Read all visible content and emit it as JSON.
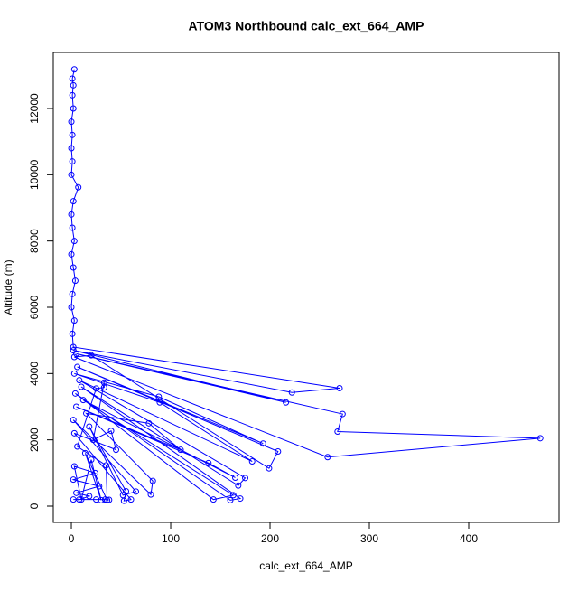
{
  "chart_data": {
    "type": "line",
    "title": "ATOM3 Northbound calc_ext_664_AMP",
    "x_label": "calc_ext_664_AMP",
    "y_label": "Altitude (m)",
    "xlim": [
      -18.2,
      490.9
    ],
    "ylim": [
      -491,
      13691
    ],
    "xticks": [
      0,
      100,
      200,
      300,
      400
    ],
    "yticks": [
      0,
      2000,
      4000,
      6000,
      8000,
      10000,
      12000
    ],
    "series": [
      {
        "color": "#0000ff",
        "x": [
          3,
          1,
          2,
          1,
          2,
          0,
          1,
          0,
          1,
          0,
          7,
          2,
          0,
          1,
          3,
          0,
          2,
          4,
          1,
          0,
          3,
          1,
          2,
          270,
          222,
          2,
          216,
          5,
          273,
          268,
          472,
          258,
          3,
          20,
          199,
          208,
          6,
          193,
          88,
          3,
          89,
          182,
          8,
          175,
          168,
          10,
          170,
          160,
          4,
          143,
          163,
          12,
          165,
          138,
          5,
          110,
          78,
          15,
          82,
          80,
          2,
          65,
          52,
          18,
          55,
          53,
          60,
          3,
          45,
          40,
          22,
          33,
          33,
          25,
          6,
          35,
          36,
          14,
          30,
          20,
          10,
          3,
          24,
          2,
          28,
          5,
          18,
          8,
          2,
          25,
          34,
          38
        ],
        "values": [
          13180,
          12900,
          12700,
          12400,
          12000,
          11600,
          11200,
          10800,
          10400,
          10000,
          9620,
          9200,
          8800,
          8400,
          8000,
          7600,
          7200,
          6800,
          6400,
          6000,
          5600,
          5200,
          4800,
          3560,
          3430,
          4700,
          3130,
          4600,
          2780,
          2250,
          2050,
          1480,
          4500,
          4550,
          1140,
          1650,
          4200,
          1890,
          3300,
          4000,
          3130,
          1350,
          3800,
          850,
          620,
          3600,
          230,
          180,
          3400,
          200,
          330,
          3200,
          860,
          1300,
          3000,
          1700,
          2500,
          2800,
          760,
          350,
          2600,
          440,
          330,
          2400,
          450,
          160,
          200,
          2200,
          1700,
          2270,
          2000,
          3730,
          3580,
          3550,
          1800,
          1230,
          180,
          1600,
          180,
          1400,
          200,
          1200,
          1000,
          800,
          600,
          400,
          300,
          200,
          200,
          200,
          200,
          190
        ]
      }
    ]
  }
}
